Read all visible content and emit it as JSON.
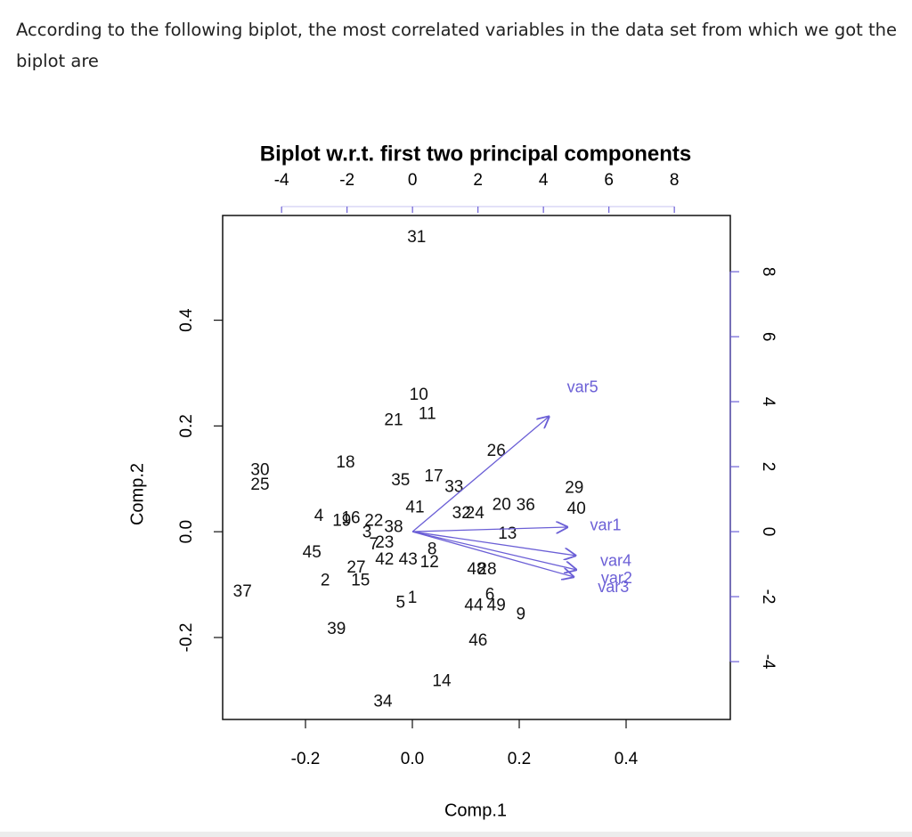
{
  "question": "According to the following biplot, the most correlated variables in the data set from which we got the biplot are",
  "chart_data": {
    "type": "biplot",
    "title": "Biplot  w.r.t. first two principal components",
    "xlabel": "Comp.1",
    "ylabel": "Comp.2",
    "xlim": [
      -0.355,
      0.595
    ],
    "ylim": [
      -0.355,
      0.598
    ],
    "xticks": [
      -0.2,
      {
        "value": 0,
        "label": "0.0"
      },
      0.2,
      0.4
    ],
    "yticks": [
      -0.2,
      {
        "value": 0,
        "label": "0.0"
      },
      0.2,
      0.4
    ],
    "x2lim": [
      -5.8,
      9.71
    ],
    "y2lim": [
      -5.78,
      9.73
    ],
    "x2ticks": [
      -4,
      -2,
      0,
      2,
      4,
      6,
      8
    ],
    "y2ticks": [
      -4,
      -2,
      0,
      2,
      4,
      6,
      8
    ],
    "color": "#111111",
    "arrow_color": "#6b5fd6",
    "points": {
      "labels": [
        "31",
        "10",
        "11",
        "21",
        "26",
        "18",
        "30",
        "25",
        "35",
        "17",
        "33",
        "29",
        "41",
        "32",
        "24",
        "20",
        "36",
        "40",
        "4",
        "19",
        "16",
        "22",
        "38",
        "3",
        "13",
        "23",
        "7",
        "45",
        "42",
        "43",
        "8",
        "12",
        "27",
        "15",
        "2",
        "48",
        "28",
        "37",
        "5",
        "1",
        "6",
        "44",
        "49",
        "9",
        "39",
        "46",
        "14",
        "34"
      ],
      "x": [
        0.008,
        0.012,
        0.028,
        -0.035,
        0.157,
        -0.125,
        -0.285,
        -0.285,
        -0.022,
        0.04,
        0.078,
        0.303,
        0.005,
        0.092,
        0.117,
        0.167,
        0.212,
        0.307,
        -0.175,
        -0.132,
        -0.115,
        -0.072,
        -0.035,
        -0.085,
        0.178,
        -0.052,
        -0.072,
        -0.188,
        -0.052,
        -0.008,
        0.037,
        0.032,
        -0.105,
        -0.097,
        -0.163,
        0.12,
        0.14,
        -0.318,
        -0.022,
        0.0,
        0.145,
        0.115,
        0.157,
        0.203,
        -0.142,
        0.123,
        0.055,
        -0.055
      ],
      "y": [
        0.556,
        0.258,
        0.222,
        0.21,
        0.152,
        0.13,
        0.116,
        0.088,
        0.096,
        0.104,
        0.084,
        0.082,
        0.045,
        0.034,
        0.034,
        0.05,
        0.049,
        0.042,
        0.029,
        0.02,
        0.025,
        0.02,
        0.008,
        -0.002,
        -0.005,
        -0.022,
        -0.025,
        -0.04,
        -0.054,
        -0.054,
        -0.034,
        -0.059,
        -0.069,
        -0.093,
        -0.093,
        -0.072,
        -0.072,
        -0.114,
        -0.135,
        -0.126,
        -0.12,
        -0.14,
        -0.14,
        -0.157,
        -0.185,
        -0.207,
        -0.283,
        -0.322
      ]
    },
    "loadings": {
      "names": [
        "var5",
        "var1",
        "var4",
        "var2",
        "var3"
      ],
      "x": [
        4.19,
        4.76,
        5.01,
        5.03,
        4.95
      ],
      "y": [
        3.56,
        0.14,
        -0.74,
        -1.18,
        -1.4
      ]
    }
  }
}
